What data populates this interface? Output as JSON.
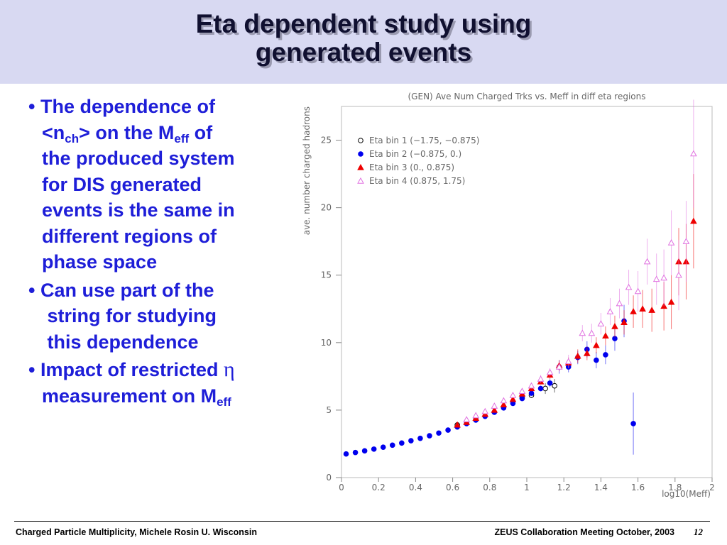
{
  "slide": {
    "title_lines": [
      "Eta dependent study using",
      "generated events"
    ],
    "bullets": [
      [
        [
          {
            "text": "The dependence of"
          }
        ],
        [
          {
            "text": "<n"
          },
          {
            "sub": "ch"
          },
          {
            "text": "> on the M"
          },
          {
            "sub": "eff"
          },
          {
            "text": " of"
          }
        ],
        [
          {
            "text": "the produced system"
          }
        ],
        [
          {
            "text": "for DIS generated"
          }
        ],
        [
          {
            "text": "events is the same in"
          }
        ],
        [
          {
            "text": "different regions of"
          }
        ],
        [
          {
            "text": "phase space"
          }
        ]
      ],
      [
        [
          {
            "text": "Can use part of the"
          }
        ],
        [
          {
            "text": " string for studying"
          }
        ],
        [
          {
            "text": " this dependence"
          }
        ]
      ],
      [
        [
          {
            "text": "Impact of restricted "
          },
          {
            "greek": "η"
          }
        ],
        [
          {
            "text": "measurement on M"
          },
          {
            "sub": "eff"
          }
        ]
      ]
    ],
    "footer_left": "Charged Particle Multiplicity, Michele Rosin U. Wisconsin",
    "footer_right": "ZEUS Collaboration Meeting October, 2003",
    "page": "12"
  },
  "chart_data": {
    "type": "scatter",
    "title": "(GEN) Ave Num Charged Trks vs. Meff in diff eta regions",
    "x_label": "log10(Meff)",
    "y_label": "ave. number charged hadrons",
    "xlim": [
      0,
      2
    ],
    "ylim": [
      0,
      27.5
    ],
    "xticks": [
      0,
      0.2,
      0.4,
      0.6,
      0.8,
      1,
      1.2,
      1.4,
      1.6,
      1.8,
      2
    ],
    "yticks": [
      0,
      5,
      10,
      15,
      20,
      25
    ],
    "series": [
      {
        "name": "Eta bin 1 (−1.75, −0.875)",
        "color": "#000000",
        "marker": "open-circle",
        "x": [
          0.625,
          0.725,
          0.975,
          1.025,
          1.1,
          1.15
        ],
        "values": [
          3.9,
          4.3,
          5.9,
          6.1,
          6.6,
          6.8
        ],
        "errors": [
          0.1,
          0.1,
          0.15,
          0.2,
          0.4,
          0.5
        ]
      },
      {
        "name": "Eta bin 2 (−0.875, 0.)",
        "color": "#0000ee",
        "marker": "circle",
        "x": [
          0.025,
          0.075,
          0.125,
          0.175,
          0.225,
          0.275,
          0.325,
          0.375,
          0.425,
          0.475,
          0.525,
          0.575,
          0.625,
          0.675,
          0.725,
          0.775,
          0.825,
          0.875,
          0.925,
          0.975,
          1.025,
          1.075,
          1.125,
          1.175,
          1.225,
          1.275,
          1.325,
          1.375,
          1.425,
          1.475,
          1.525,
          1.575
        ],
        "values": [
          1.75,
          1.86,
          1.98,
          2.11,
          2.25,
          2.4,
          2.56,
          2.73,
          2.91,
          3.1,
          3.3,
          3.52,
          3.75,
          4.0,
          4.26,
          4.54,
          4.84,
          5.16,
          5.5,
          5.86,
          6.25,
          6.6,
          7.0,
          8.2,
          8.2,
          8.9,
          9.5,
          8.7,
          9.1,
          10.3,
          11.6,
          4.0
        ],
        "errors": [
          0.1,
          0.1,
          0.1,
          0.1,
          0.1,
          0.1,
          0.1,
          0.1,
          0.1,
          0.1,
          0.1,
          0.1,
          0.1,
          0.1,
          0.1,
          0.1,
          0.1,
          0.1,
          0.1,
          0.15,
          0.15,
          0.2,
          0.3,
          0.5,
          0.4,
          0.5,
          0.6,
          0.6,
          0.7,
          0.9,
          1.2,
          2.3
        ]
      },
      {
        "name": "Eta bin 3 (0., 0.875)",
        "color": "#ee0000",
        "marker": "triangle",
        "x": [
          0.625,
          0.675,
          0.725,
          0.775,
          0.825,
          0.875,
          0.925,
          0.975,
          1.025,
          1.075,
          1.125,
          1.175,
          1.225,
          1.275,
          1.325,
          1.375,
          1.425,
          1.475,
          1.525,
          1.575,
          1.625,
          1.675,
          1.74,
          1.78,
          1.82,
          1.86,
          1.9
        ],
        "values": [
          3.9,
          4.1,
          4.4,
          4.7,
          5.0,
          5.4,
          5.8,
          6.2,
          6.6,
          7.1,
          7.6,
          8.3,
          8.5,
          9.0,
          9.2,
          9.8,
          10.5,
          11.2,
          11.5,
          12.3,
          12.5,
          12.4,
          12.7,
          13.0,
          16.0,
          16.0,
          19.0
        ],
        "errors": [
          0.1,
          0.1,
          0.1,
          0.1,
          0.1,
          0.1,
          0.15,
          0.15,
          0.2,
          0.2,
          0.3,
          0.4,
          0.4,
          0.5,
          0.5,
          0.6,
          0.7,
          0.8,
          0.9,
          1.2,
          1.4,
          1.6,
          1.8,
          2.0,
          2.5,
          2.8,
          3.5
        ]
      },
      {
        "name": "Eta bin 4 (0.875, 1.75)",
        "color": "#e070e0",
        "marker": "open-triangle",
        "x": [
          0.675,
          0.725,
          0.775,
          0.825,
          0.875,
          0.925,
          0.975,
          1.025,
          1.075,
          1.125,
          1.175,
          1.225,
          1.3,
          1.35,
          1.4,
          1.45,
          1.5,
          1.55,
          1.6,
          1.65,
          1.7,
          1.74,
          1.78,
          1.82,
          1.86,
          1.9
        ],
        "values": [
          4.3,
          4.6,
          4.9,
          5.3,
          5.7,
          6.1,
          6.4,
          6.8,
          7.3,
          7.8,
          8.2,
          8.6,
          10.7,
          10.7,
          11.4,
          12.3,
          12.9,
          14.1,
          13.8,
          16.0,
          14.7,
          14.8,
          17.4,
          15.0,
          17.5,
          24.0
        ],
        "errors": [
          0.1,
          0.1,
          0.1,
          0.1,
          0.15,
          0.15,
          0.2,
          0.2,
          0.3,
          0.3,
          0.4,
          0.5,
          0.6,
          0.7,
          0.8,
          1.0,
          1.1,
          1.3,
          1.5,
          1.7,
          1.9,
          2.1,
          2.4,
          2.6,
          3.0,
          4.0
        ]
      }
    ]
  }
}
